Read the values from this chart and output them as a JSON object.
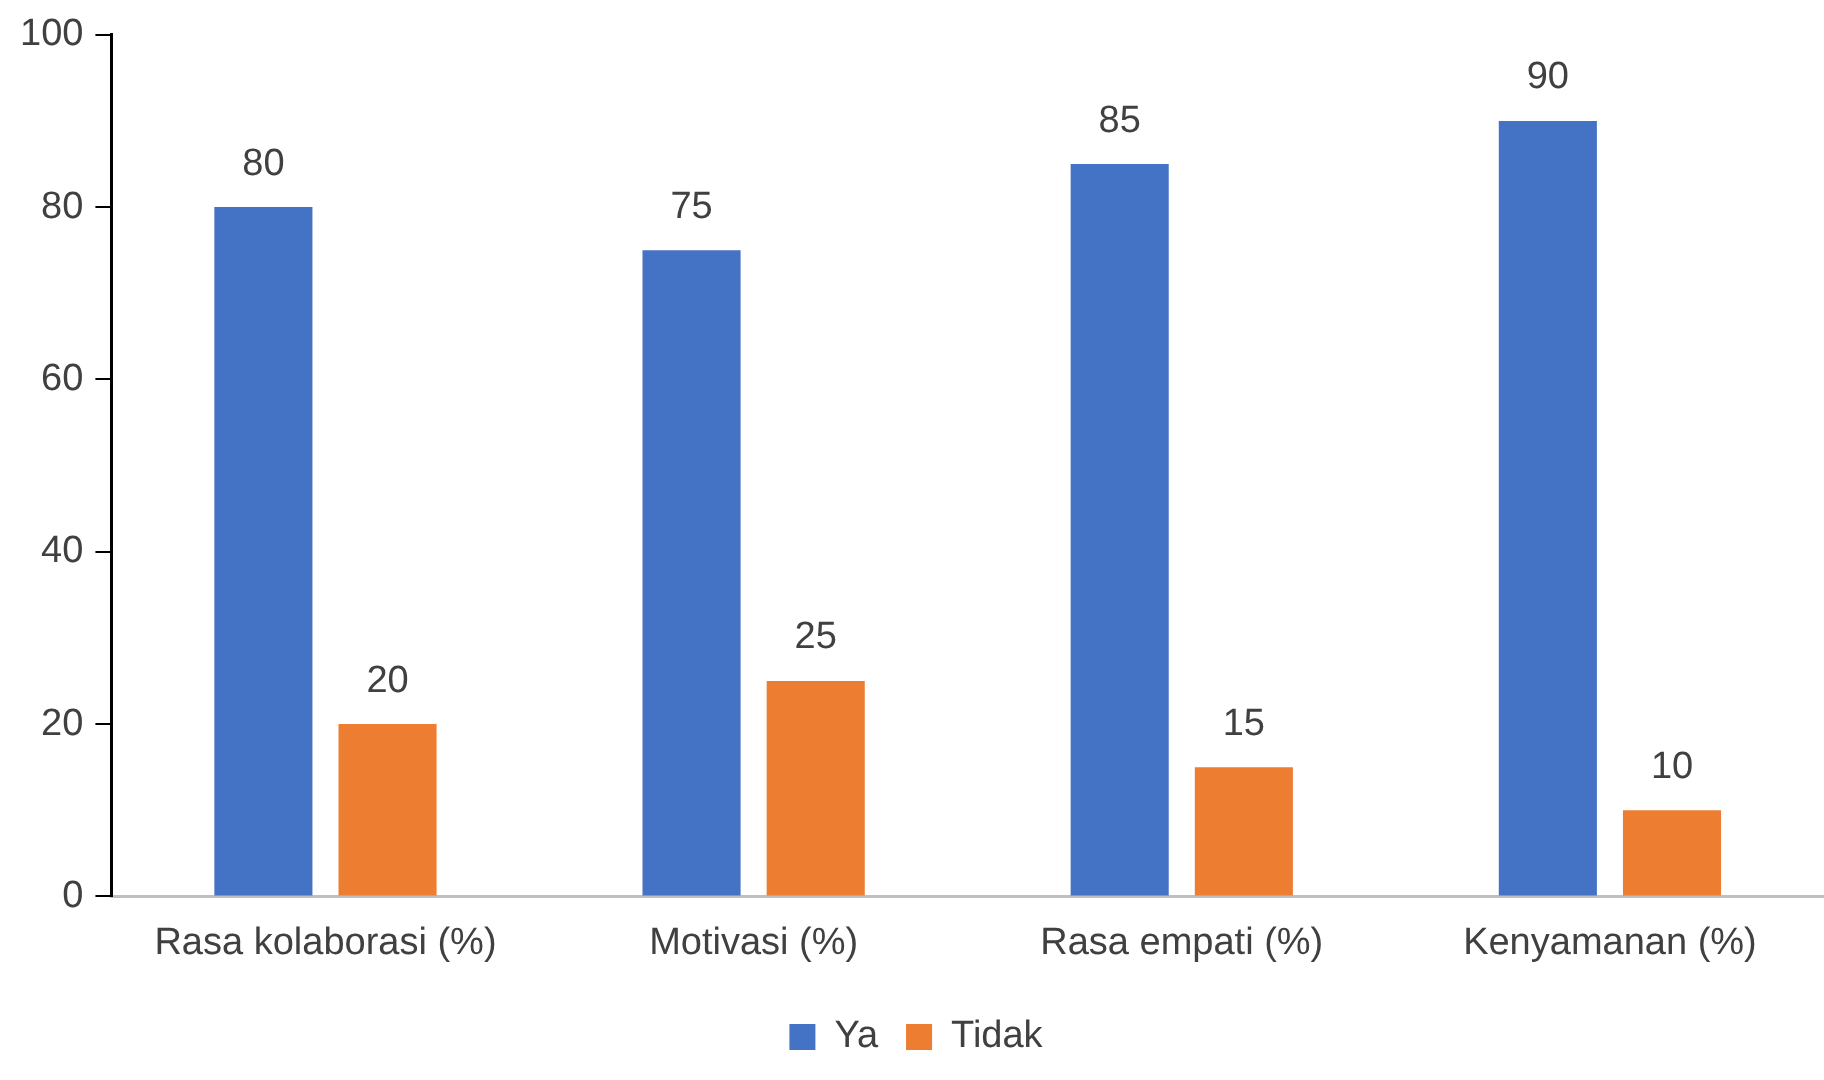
{
  "chart_data": {
    "type": "bar",
    "categories": [
      "Rasa kolaborasi (%)",
      "Motivasi (%)",
      "Rasa empati (%)",
      "Kenyamanan (%)"
    ],
    "series": [
      {
        "name": "Ya",
        "color": "#4472c4",
        "values": [
          80,
          75,
          85,
          90
        ]
      },
      {
        "name": "Tidak",
        "color": "#ed7d31",
        "values": [
          20,
          25,
          15,
          10
        ]
      }
    ],
    "ylim": [
      0,
      100
    ],
    "yticks": [
      0,
      20,
      40,
      60,
      80,
      100
    ],
    "grid": false,
    "legend": "bottom",
    "data_labels": true
  }
}
